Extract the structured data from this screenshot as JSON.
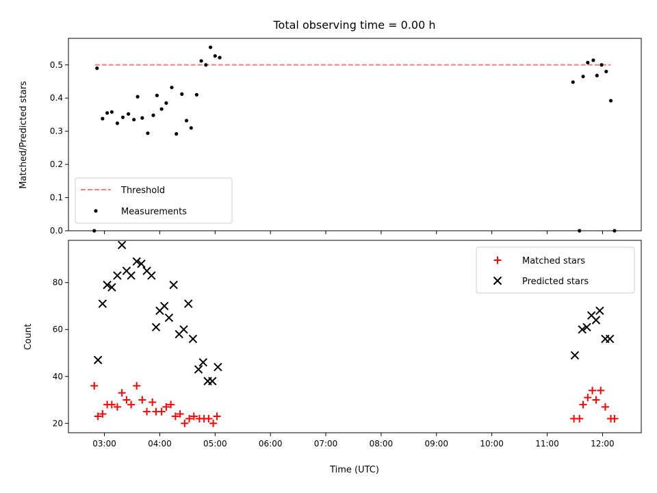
{
  "chart_data": [
    {
      "panel": "top",
      "type": "scatter",
      "title": "Total observing time = 0.00 h",
      "xlabel": "",
      "ylabel": "Matched/Predicted stars",
      "ylim": [
        0,
        0.58
      ],
      "yticks": [
        0.0,
        0.1,
        0.2,
        0.3,
        0.4,
        0.5
      ],
      "ytick_labels": [
        "0.0",
        "0.1",
        "0.2",
        "0.3",
        "0.4",
        "0.5"
      ],
      "xlim_hours": [
        2.35,
        12.7
      ],
      "legend_position": "lower-left",
      "threshold": {
        "name": "Threshold",
        "value": 0.5,
        "x_start": 2.83,
        "x_end": 12.15,
        "color": "#f08080"
      },
      "series": [
        {
          "name": "Measurements",
          "color": "#000000",
          "marker": "dot",
          "points": [
            {
              "x": "02:49",
              "y": 0.0
            },
            {
              "x": "02:52",
              "y": 0.49
            },
            {
              "x": "02:58",
              "y": 0.338
            },
            {
              "x": "03:03",
              "y": 0.355
            },
            {
              "x": "03:08",
              "y": 0.358
            },
            {
              "x": "03:14",
              "y": 0.324
            },
            {
              "x": "03:20",
              "y": 0.342
            },
            {
              "x": "03:26",
              "y": 0.352
            },
            {
              "x": "03:32",
              "y": 0.335
            },
            {
              "x": "03:36",
              "y": 0.404
            },
            {
              "x": "03:41",
              "y": 0.34
            },
            {
              "x": "03:47",
              "y": 0.294
            },
            {
              "x": "03:53",
              "y": 0.348
            },
            {
              "x": "03:57",
              "y": 0.408
            },
            {
              "x": "04:02",
              "y": 0.367
            },
            {
              "x": "04:07",
              "y": 0.385
            },
            {
              "x": "04:13",
              "y": 0.432
            },
            {
              "x": "04:18",
              "y": 0.292
            },
            {
              "x": "04:24",
              "y": 0.412
            },
            {
              "x": "04:29",
              "y": 0.332
            },
            {
              "x": "04:34",
              "y": 0.31
            },
            {
              "x": "04:40",
              "y": 0.41
            },
            {
              "x": "04:45",
              "y": 0.512
            },
            {
              "x": "04:50",
              "y": 0.5
            },
            {
              "x": "04:55",
              "y": 0.553
            },
            {
              "x": "05:00",
              "y": 0.527
            },
            {
              "x": "05:05",
              "y": 0.522
            },
            {
              "x": "11:28",
              "y": 0.448
            },
            {
              "x": "11:35",
              "y": 0.0
            },
            {
              "x": "11:39",
              "y": 0.465
            },
            {
              "x": "11:44",
              "y": 0.507
            },
            {
              "x": "11:50",
              "y": 0.514
            },
            {
              "x": "11:54",
              "y": 0.468
            },
            {
              "x": "11:59",
              "y": 0.5
            },
            {
              "x": "12:04",
              "y": 0.48
            },
            {
              "x": "12:09",
              "y": 0.392
            },
            {
              "x": "12:13",
              "y": 0.0
            }
          ]
        }
      ]
    },
    {
      "panel": "bottom",
      "type": "scatter",
      "title": "",
      "xlabel": "Time (UTC)",
      "ylabel": "Count",
      "ylim": [
        16,
        98
      ],
      "yticks": [
        20,
        40,
        60,
        80
      ],
      "ytick_labels": [
        "20",
        "40",
        "60",
        "80"
      ],
      "xlim_hours": [
        2.35,
        12.7
      ],
      "xtick_labels": [
        "03:00",
        "04:00",
        "05:00",
        "06:00",
        "07:00",
        "08:00",
        "09:00",
        "10:00",
        "11:00",
        "12:00"
      ],
      "legend_position": "upper-right",
      "series": [
        {
          "name": "Matched stars",
          "color": "#ff0000",
          "marker": "plus",
          "points": [
            {
              "x": "02:49",
              "y": 36
            },
            {
              "x": "02:53",
              "y": 23
            },
            {
              "x": "02:58",
              "y": 24
            },
            {
              "x": "03:03",
              "y": 28
            },
            {
              "x": "03:08",
              "y": 28
            },
            {
              "x": "03:14",
              "y": 27
            },
            {
              "x": "03:19",
              "y": 33
            },
            {
              "x": "03:24",
              "y": 30
            },
            {
              "x": "03:29",
              "y": 28
            },
            {
              "x": "03:35",
              "y": 36
            },
            {
              "x": "03:41",
              "y": 30
            },
            {
              "x": "03:46",
              "y": 25
            },
            {
              "x": "03:52",
              "y": 29
            },
            {
              "x": "03:56",
              "y": 25
            },
            {
              "x": "04:02",
              "y": 25
            },
            {
              "x": "04:07",
              "y": 27
            },
            {
              "x": "04:12",
              "y": 28
            },
            {
              "x": "04:17",
              "y": 23
            },
            {
              "x": "04:22",
              "y": 24
            },
            {
              "x": "04:27",
              "y": 20
            },
            {
              "x": "04:32",
              "y": 22
            },
            {
              "x": "04:37",
              "y": 23
            },
            {
              "x": "04:43",
              "y": 22
            },
            {
              "x": "04:48",
              "y": 22
            },
            {
              "x": "04:53",
              "y": 22
            },
            {
              "x": "04:58",
              "y": 20
            },
            {
              "x": "05:02",
              "y": 23
            },
            {
              "x": "11:29",
              "y": 22
            },
            {
              "x": "11:35",
              "y": 22
            },
            {
              "x": "11:39",
              "y": 28
            },
            {
              "x": "11:44",
              "y": 31
            },
            {
              "x": "11:49",
              "y": 34
            },
            {
              "x": "11:53",
              "y": 30
            },
            {
              "x": "11:58",
              "y": 34
            },
            {
              "x": "12:03",
              "y": 27
            },
            {
              "x": "12:09",
              "y": 22
            },
            {
              "x": "12:13",
              "y": 22
            }
          ]
        },
        {
          "name": "Predicted stars",
          "color": "#000000",
          "marker": "x",
          "points": [
            {
              "x": "02:53",
              "y": 47
            },
            {
              "x": "02:58",
              "y": 71
            },
            {
              "x": "03:03",
              "y": 79
            },
            {
              "x": "03:08",
              "y": 78
            },
            {
              "x": "03:14",
              "y": 83
            },
            {
              "x": "03:19",
              "y": 96
            },
            {
              "x": "03:24",
              "y": 85
            },
            {
              "x": "03:29",
              "y": 83
            },
            {
              "x": "03:35",
              "y": 89
            },
            {
              "x": "03:40",
              "y": 88
            },
            {
              "x": "03:46",
              "y": 85
            },
            {
              "x": "03:51",
              "y": 83
            },
            {
              "x": "03:56",
              "y": 61
            },
            {
              "x": "04:00",
              "y": 68
            },
            {
              "x": "04:05",
              "y": 70
            },
            {
              "x": "04:10",
              "y": 65
            },
            {
              "x": "04:15",
              "y": 79
            },
            {
              "x": "04:21",
              "y": 58
            },
            {
              "x": "04:26",
              "y": 60
            },
            {
              "x": "04:31",
              "y": 71
            },
            {
              "x": "04:36",
              "y": 56
            },
            {
              "x": "04:42",
              "y": 43
            },
            {
              "x": "04:47",
              "y": 46
            },
            {
              "x": "04:52",
              "y": 38
            },
            {
              "x": "04:57",
              "y": 38
            },
            {
              "x": "05:03",
              "y": 44
            },
            {
              "x": "11:30",
              "y": 49
            },
            {
              "x": "11:38",
              "y": 60
            },
            {
              "x": "11:43",
              "y": 61
            },
            {
              "x": "11:48",
              "y": 66
            },
            {
              "x": "11:53",
              "y": 64
            },
            {
              "x": "11:57",
              "y": 68
            },
            {
              "x": "12:03",
              "y": 56
            },
            {
              "x": "12:08",
              "y": 56
            }
          ]
        }
      ]
    }
  ]
}
